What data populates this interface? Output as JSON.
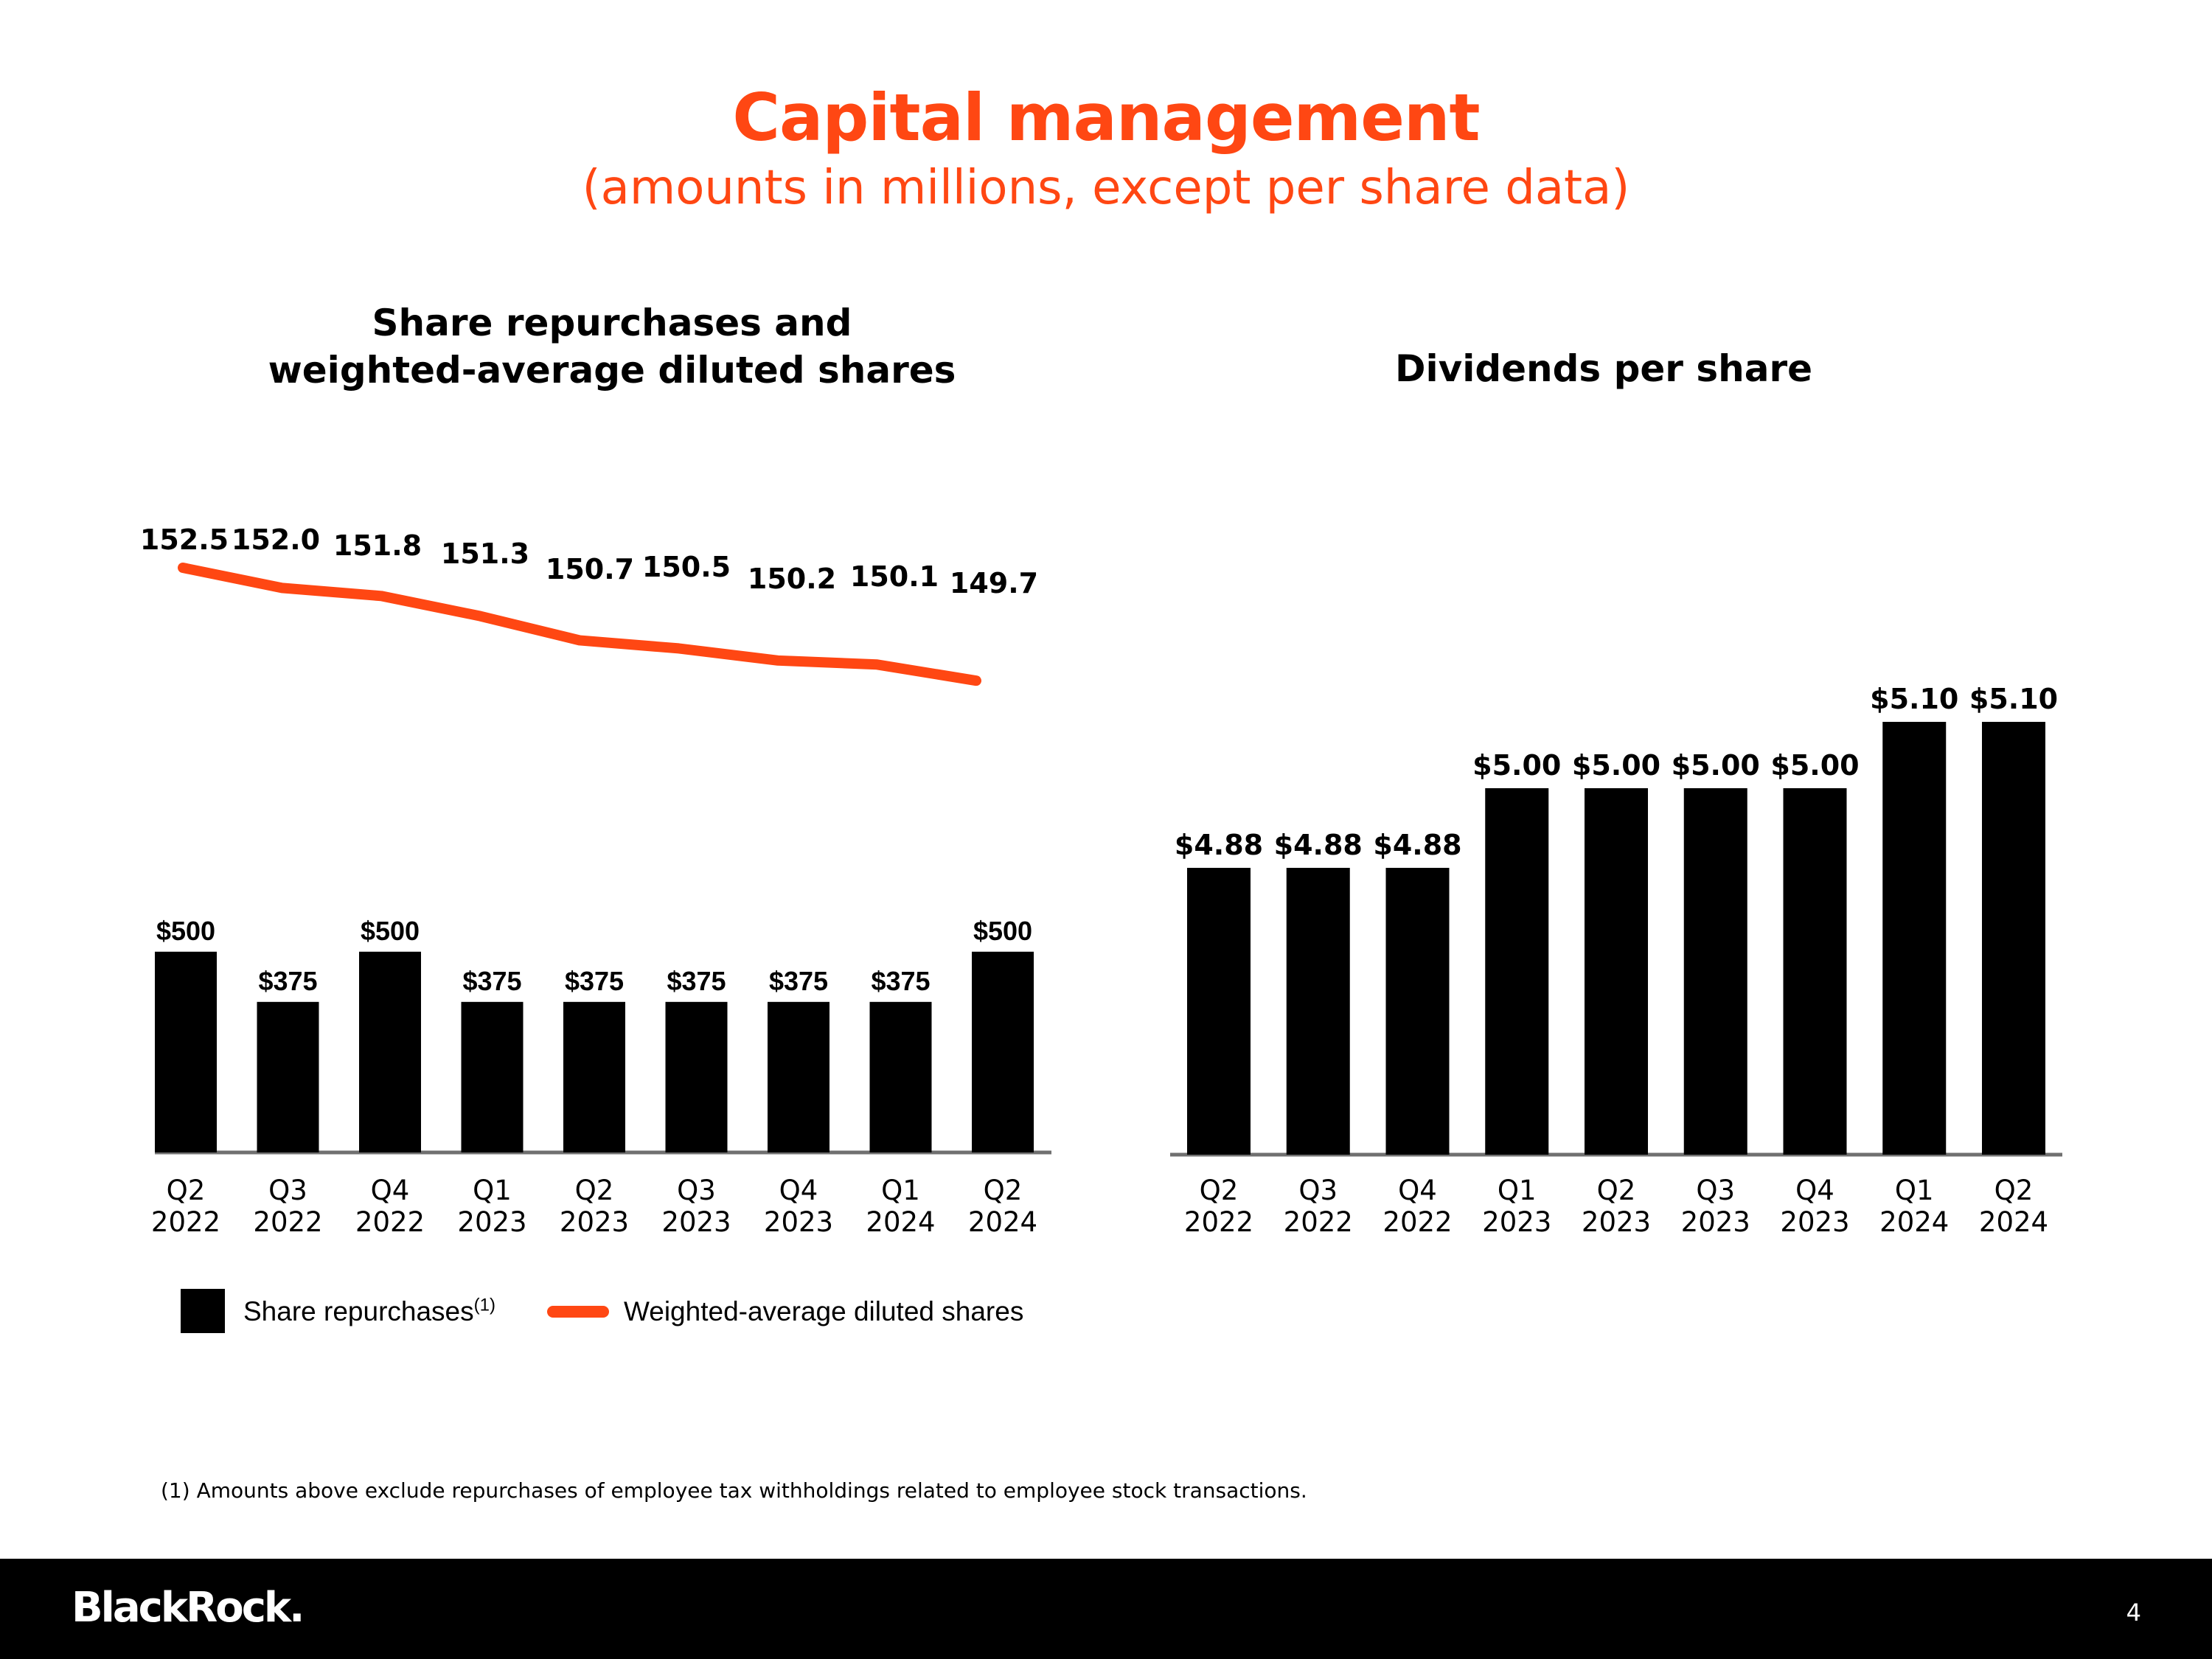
{
  "header": {
    "title": "Capital management",
    "subtitle": "(amounts in millions, except per share data)"
  },
  "colors": {
    "accent": "#ff4713",
    "bars": "#000000",
    "axis": "#707070"
  },
  "chart_data": [
    {
      "type": "bar",
      "title": "Share repurchases and weighted-average diluted shares",
      "title_lines": [
        "Share repurchases and",
        "weighted-average diluted shares"
      ],
      "categories": [
        "Q2 2022",
        "Q3 2022",
        "Q4 2022",
        "Q1 2023",
        "Q2 2023",
        "Q3 2023",
        "Q4 2023",
        "Q1 2024",
        "Q2 2024"
      ],
      "category_lines": [
        [
          "Q2",
          "2022"
        ],
        [
          "Q3",
          "2022"
        ],
        [
          "Q4",
          "2022"
        ],
        [
          "Q1",
          "2023"
        ],
        [
          "Q2",
          "2023"
        ],
        [
          "Q3",
          "2023"
        ],
        [
          "Q4",
          "2023"
        ],
        [
          "Q1",
          "2024"
        ],
        [
          "Q2",
          "2024"
        ]
      ],
      "series": [
        {
          "name": "Share repurchases",
          "kind": "bar",
          "values": [
            500,
            375,
            500,
            375,
            375,
            375,
            375,
            375,
            500
          ],
          "labels": [
            "$500",
            "$375",
            "$500",
            "$375",
            "$375",
            "$375",
            "$375",
            "$375",
            "$500"
          ]
        },
        {
          "name": "Weighted-average diluted shares",
          "kind": "line",
          "values": [
            152.5,
            152.0,
            151.8,
            151.3,
            150.7,
            150.5,
            150.2,
            150.1,
            149.7
          ],
          "labels": [
            "152.5",
            "152.0",
            "151.8",
            "151.3",
            "150.7",
            "150.5",
            "150.2",
            "150.1",
            "149.7"
          ]
        }
      ],
      "legend": {
        "bar_label": "Share repurchases",
        "bar_label_superscript": "(1)",
        "line_label": "Weighted-average diluted shares",
        "position": "bottom"
      }
    },
    {
      "type": "bar",
      "title": "Dividends per share",
      "categories": [
        "Q2 2022",
        "Q3 2022",
        "Q4 2022",
        "Q1 2023",
        "Q2 2023",
        "Q3 2023",
        "Q4 2023",
        "Q1 2024",
        "Q2 2024"
      ],
      "category_lines": [
        [
          "Q2",
          "2022"
        ],
        [
          "Q3",
          "2022"
        ],
        [
          "Q4",
          "2022"
        ],
        [
          "Q1",
          "2023"
        ],
        [
          "Q2",
          "2023"
        ],
        [
          "Q3",
          "2023"
        ],
        [
          "Q4",
          "2023"
        ],
        [
          "Q1",
          "2024"
        ],
        [
          "Q2",
          "2024"
        ]
      ],
      "values": [
        4.88,
        4.88,
        4.88,
        5.0,
        5.0,
        5.0,
        5.0,
        5.1,
        5.1
      ],
      "labels": [
        "$4.88",
        "$4.88",
        "$4.88",
        "$5.00",
        "$5.00",
        "$5.00",
        "$5.00",
        "$5.10",
        "$5.10"
      ]
    }
  ],
  "footnote": "(1) Amounts above exclude repurchases of employee tax withholdings related to employee stock transactions.",
  "footer": {
    "logo": "BlackRock.",
    "page_number": "4"
  }
}
